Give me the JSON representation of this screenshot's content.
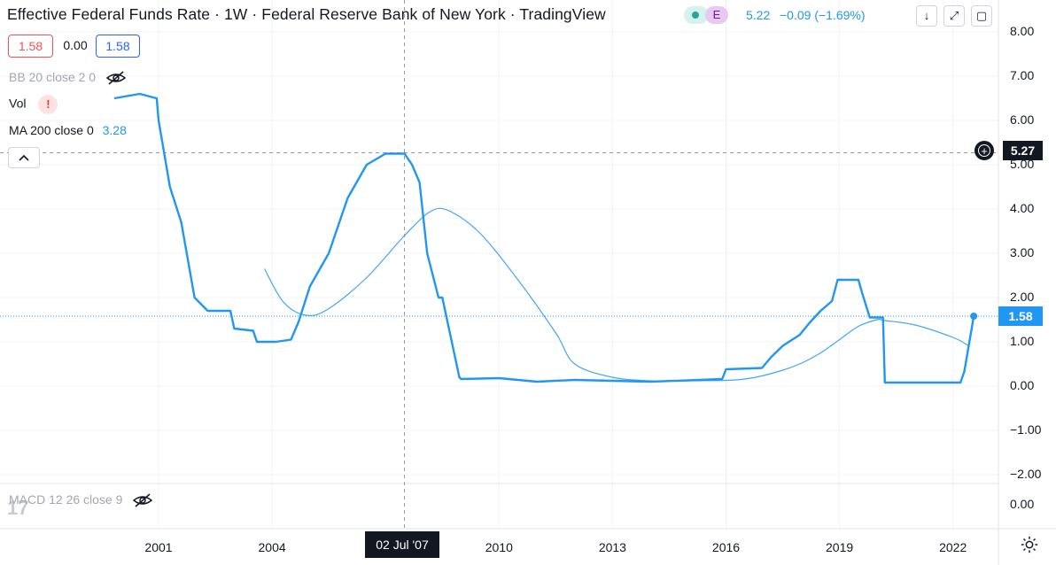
{
  "header": {
    "title": "Effective Federal Funds Rate · 1W · Federal Reserve Bank of New York · TradingView",
    "pill_e": "E",
    "last": "5.22",
    "change": "−0.09 (−1.69%)",
    "btn_down": "↓",
    "btn_fullscreen": "⤢",
    "btn_restore": "▢"
  },
  "ohlc": {
    "open": "1.58",
    "mid": "0.00",
    "close": "1.58"
  },
  "legend": {
    "bb": "BB 20 close 2 0",
    "vol": "Vol",
    "vol_warning": "!",
    "ma_label": "MA 200 close 0",
    "ma_value": "3.28",
    "macd": "MACD 12 26 close 9",
    "collapse": "^"
  },
  "y_axis": {
    "ticks": [
      "8.00",
      "7.00",
      "6.00",
      "5.00",
      "4.00",
      "3.00",
      "2.00",
      "1.00",
      "0.00",
      "−1.00",
      "−2.00"
    ],
    "macd_tick": "0.00",
    "crosshair_tag": "5.27",
    "last_tag": "1.58"
  },
  "x_axis": {
    "ticks": [
      "2001",
      "2004",
      "2010",
      "2013",
      "2016",
      "2019",
      "2022"
    ],
    "crosshair_label": "02 Jul '07"
  },
  "colors": {
    "series": "#2196f3",
    "ma": "#42a5f5",
    "crosshair": "#9598a1",
    "grid": "#f0f3fa"
  },
  "chart_data": {
    "type": "line",
    "title": "Effective Federal Funds Rate",
    "ylim": [
      -2.5,
      8.5
    ],
    "series": [
      {
        "name": "Effective Federal Funds Rate",
        "x": [
          1999.83,
          2000.5,
          2000.95,
          2001.0,
          2001.1,
          2001.3,
          2001.6,
          2001.95,
          2002.3,
          2002.9,
          2003.0,
          2003.5,
          2003.6,
          2004.1,
          2004.5,
          2004.7,
          2005.0,
          2005.5,
          2006.0,
          2006.5,
          2007.0,
          2007.5,
          2007.7,
          2007.9,
          2008.1,
          2008.4,
          2008.5,
          2008.95,
          2009.0,
          2010.0,
          2011.0,
          2012.0,
          2013.0,
          2014.0,
          2015.0,
          2015.9,
          2016.0,
          2016.95,
          2017.2,
          2017.5,
          2017.95,
          2018.2,
          2018.5,
          2018.8,
          2018.95,
          2019.5,
          2019.6,
          2019.8,
          2020.15,
          2020.2,
          2021.0,
          2022.2,
          2022.3,
          2022.4,
          2022.55
        ],
        "values": [
          6.5,
          6.6,
          6.5,
          6.0,
          5.5,
          4.5,
          3.7,
          2.0,
          1.7,
          1.7,
          1.3,
          1.25,
          1.0,
          1.0,
          1.05,
          1.45,
          2.25,
          3.0,
          4.25,
          5.0,
          5.25,
          5.25,
          5.0,
          4.6,
          3.0,
          2.0,
          2.0,
          0.2,
          0.16,
          0.18,
          0.1,
          0.14,
          0.12,
          0.1,
          0.13,
          0.16,
          0.38,
          0.41,
          0.66,
          0.91,
          1.16,
          1.42,
          1.7,
          1.92,
          2.4,
          2.4,
          2.1,
          1.55,
          1.55,
          0.08,
          0.08,
          0.08,
          0.33,
          0.83,
          1.58
        ]
      },
      {
        "name": "MA 200 close 0",
        "x": [
          2003.8,
          2004.3,
          2004.9,
          2005.5,
          2006.5,
          2007.5,
          2008.2,
          2008.7,
          2009.5,
          2010.5,
          2011.5,
          2012.0,
          2013.0,
          2014.0,
          2015.0,
          2016.0,
          2016.5,
          2017.0,
          2017.5,
          2018.0,
          2018.5,
          2019.0,
          2019.5,
          2020.0,
          2020.2,
          2021.0,
          2022.0,
          2022.4
        ],
        "values": [
          2.65,
          1.9,
          1.6,
          1.75,
          2.45,
          3.4,
          3.95,
          3.95,
          3.45,
          2.4,
          1.2,
          0.5,
          0.2,
          0.12,
          0.12,
          0.13,
          0.16,
          0.24,
          0.36,
          0.52,
          0.75,
          1.05,
          1.35,
          1.5,
          1.48,
          1.38,
          1.1,
          0.92
        ]
      }
    ],
    "crosshair": {
      "x": 2007.5,
      "y": 5.27
    },
    "last_value": 1.58
  }
}
